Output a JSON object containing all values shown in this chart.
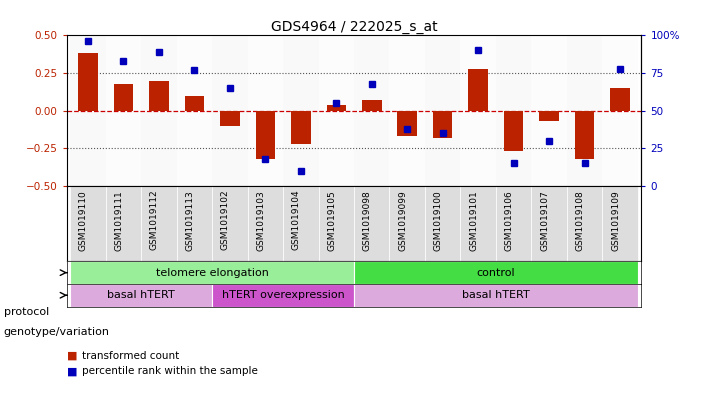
{
  "title": "GDS4964 / 222025_s_at",
  "samples": [
    "GSM1019110",
    "GSM1019111",
    "GSM1019112",
    "GSM1019113",
    "GSM1019102",
    "GSM1019103",
    "GSM1019104",
    "GSM1019105",
    "GSM1019098",
    "GSM1019099",
    "GSM1019100",
    "GSM1019101",
    "GSM1019106",
    "GSM1019107",
    "GSM1019108",
    "GSM1019109"
  ],
  "bar_values": [
    0.38,
    0.18,
    0.2,
    0.1,
    -0.1,
    -0.32,
    -0.22,
    0.04,
    0.07,
    -0.17,
    -0.18,
    0.28,
    -0.27,
    -0.07,
    -0.32,
    0.15
  ],
  "percentile_values": [
    96,
    83,
    89,
    77,
    65,
    18,
    10,
    55,
    68,
    38,
    35,
    90,
    15,
    30,
    15,
    78
  ],
  "ylim_left": [
    -0.5,
    0.5
  ],
  "ylim_right": [
    0,
    100
  ],
  "yticks_left": [
    -0.5,
    -0.25,
    0,
    0.25,
    0.5
  ],
  "yticks_right": [
    0,
    25,
    50,
    75,
    100
  ],
  "bar_color": "#bb2200",
  "dot_color": "#0000bb",
  "hline_color": "#cc0000",
  "dotted_line_color": "#555555",
  "protocol_groups": [
    {
      "label": "telomere elongation",
      "start": 0,
      "end": 7,
      "color": "#99ee99"
    },
    {
      "label": "control",
      "start": 8,
      "end": 15,
      "color": "#44dd44"
    }
  ],
  "genotype_groups": [
    {
      "label": "basal hTERT",
      "start": 0,
      "end": 3,
      "color": "#ddaadd"
    },
    {
      "label": "hTERT overexpression",
      "start": 4,
      "end": 7,
      "color": "#cc55cc"
    },
    {
      "label": "basal hTERT",
      "start": 8,
      "end": 15,
      "color": "#ddaadd"
    }
  ],
  "protocol_label": "protocol",
  "genotype_label": "genotype/variation",
  "legend_bar": "transformed count",
  "legend_dot": "percentile rank within the sample",
  "background_color": "#ffffff",
  "plot_bg": "#ffffff",
  "label_bg": "#dddddd",
  "title_fontsize": 10,
  "tick_fontsize": 7.5,
  "label_fontsize": 8,
  "sample_fontsize": 6.5
}
